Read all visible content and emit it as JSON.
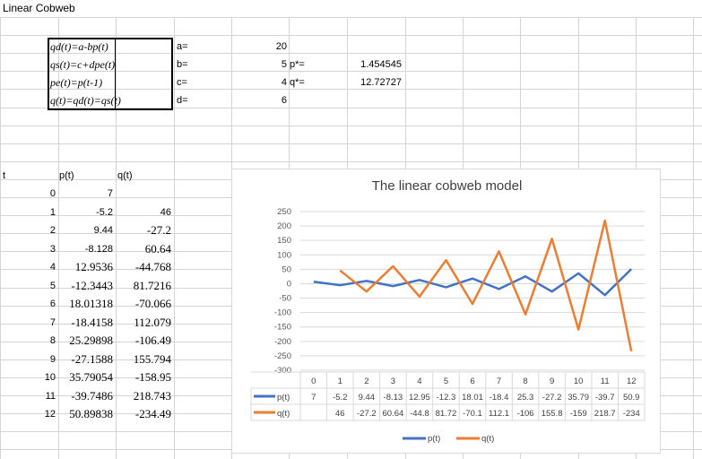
{
  "sheet": {
    "title": "Linear Cobweb",
    "formulas": [
      "qd(t)=a-bp(t)",
      "qs(t)=c+dpe(t)",
      "pe(t)=p(t-1)",
      "q(t)=qd(t)=qs(t)"
    ],
    "params": [
      {
        "label": "a=",
        "value": "20"
      },
      {
        "label": "b=",
        "value": "5"
      },
      {
        "label": "c=",
        "value": "4"
      },
      {
        "label": "d=",
        "value": "6"
      }
    ],
    "equilibrium": [
      {
        "label": "p*=",
        "value": "1.454545"
      },
      {
        "label": "q*=",
        "value": "12.72727"
      }
    ],
    "headers": {
      "t": "t",
      "p": "p(t)",
      "q": "q(t)"
    },
    "rows": [
      {
        "t": "0",
        "p": "7",
        "q": ""
      },
      {
        "t": "1",
        "p": "-5.2",
        "q": "46"
      },
      {
        "t": "2",
        "p": "9.44",
        "q": "-27.2"
      },
      {
        "t": "3",
        "p": "-8.128",
        "q": "60.64"
      },
      {
        "t": "4",
        "p": "12.9536",
        "q": "-44.768"
      },
      {
        "t": "5",
        "p": "-12.3443",
        "q": "81.7216"
      },
      {
        "t": "6",
        "p": "18.01318",
        "q": "-70.066"
      },
      {
        "t": "7",
        "p": "-18.4158",
        "q": "112.079"
      },
      {
        "t": "8",
        "p": "25.29898",
        "q": "-106.49"
      },
      {
        "t": "9",
        "p": "-27.1588",
        "q": "155.794"
      },
      {
        "t": "10",
        "p": "35.79054",
        "q": "-158.95"
      },
      {
        "t": "11",
        "p": "-39.7486",
        "q": "218.743"
      },
      {
        "t": "12",
        "p": "50.89838",
        "q": "-234.49"
      }
    ]
  },
  "chart_data": {
    "type": "line",
    "title": "The linear cobweb model",
    "categories": [
      "0",
      "1",
      "2",
      "3",
      "4",
      "5",
      "6",
      "7",
      "8",
      "9",
      "10",
      "11",
      "12"
    ],
    "ylim": [
      -300,
      250
    ],
    "yticks": [
      "250",
      "200",
      "150",
      "100",
      "50",
      "0",
      "-50",
      "-100",
      "-150",
      "-200",
      "-250",
      "-300"
    ],
    "grid": true,
    "legend": "bottom",
    "series": [
      {
        "name": "p(t)",
        "color": "#4472C4",
        "values": [
          7,
          -5.2,
          9.44,
          -8.128,
          12.9536,
          -12.3443,
          18.01318,
          -18.4158,
          25.29898,
          -27.1588,
          35.79054,
          -39.7486,
          50.89838
        ],
        "table": [
          "7",
          "-5.2",
          "9.44",
          "-8.13",
          "12.95",
          "-12.3",
          "18.01",
          "-18.4",
          "25.3",
          "-27.2",
          "35.79",
          "-39.7",
          "50.9"
        ]
      },
      {
        "name": "q(t)",
        "color": "#ED7D31",
        "values": [
          null,
          46,
          -27.2,
          60.64,
          -44.768,
          81.7216,
          -70.066,
          112.079,
          -106.49,
          155.794,
          -158.95,
          218.743,
          -234.49
        ],
        "table": [
          "",
          "46",
          "-27.2",
          "60.64",
          "-44.8",
          "81.72",
          "-70.1",
          "112.1",
          "-106",
          "155.8",
          "-159",
          "218.7",
          "-234"
        ]
      }
    ]
  }
}
